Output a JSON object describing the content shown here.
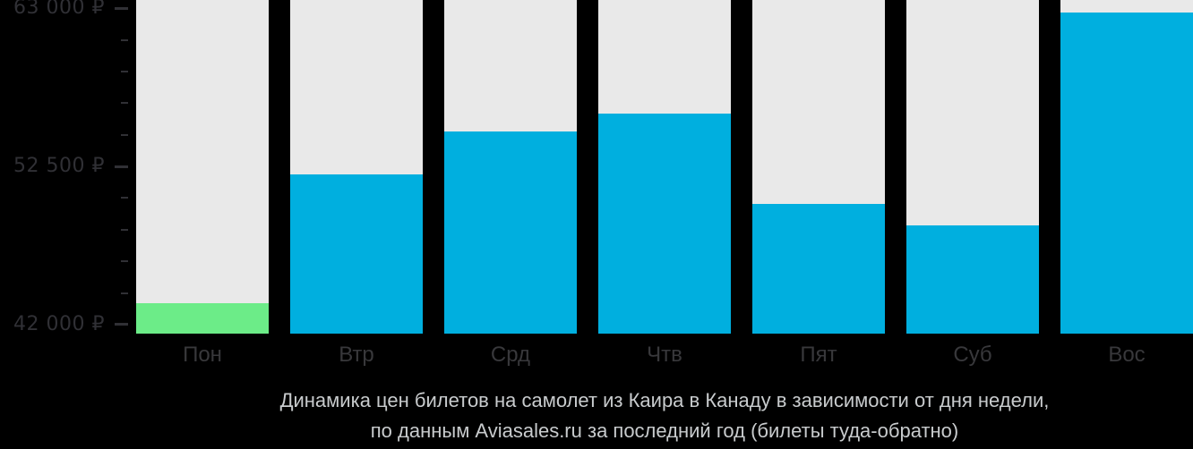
{
  "chart_data": {
    "type": "bar",
    "title": "Динамика цен билетов на самолет из Каира в Канаду в зависимости от дня недели,",
    "subtitle": "по данным Aviasales.ru за последний год (билеты туда-обратно)",
    "categories": [
      "Пон",
      "Втр",
      "Срд",
      "Чтв",
      "Пят",
      "Суб",
      "Вос"
    ],
    "values": [
      43400,
      52000,
      54800,
      56000,
      50000,
      48600,
      62700
    ],
    "currency": "₽",
    "xlabel": "",
    "ylabel": "",
    "ylim": [
      41400,
      63550
    ],
    "yticks": [
      {
        "value": 63000,
        "label": "63 000 ₽"
      },
      {
        "value": 52500,
        "label": "52 500 ₽"
      },
      {
        "value": 42000,
        "label": "42 000 ₽"
      }
    ],
    "minor_tick_step": 2100,
    "highlight_index": 0,
    "grid": false,
    "legend": "none",
    "colors": {
      "bar": "#00afdf",
      "highlight": "#6cec88",
      "track": "#e9e9e9",
      "background": "#000000",
      "axis_text": "#303035",
      "day_label_text": "#38383b",
      "caption_text": "#c8cbcd"
    }
  }
}
